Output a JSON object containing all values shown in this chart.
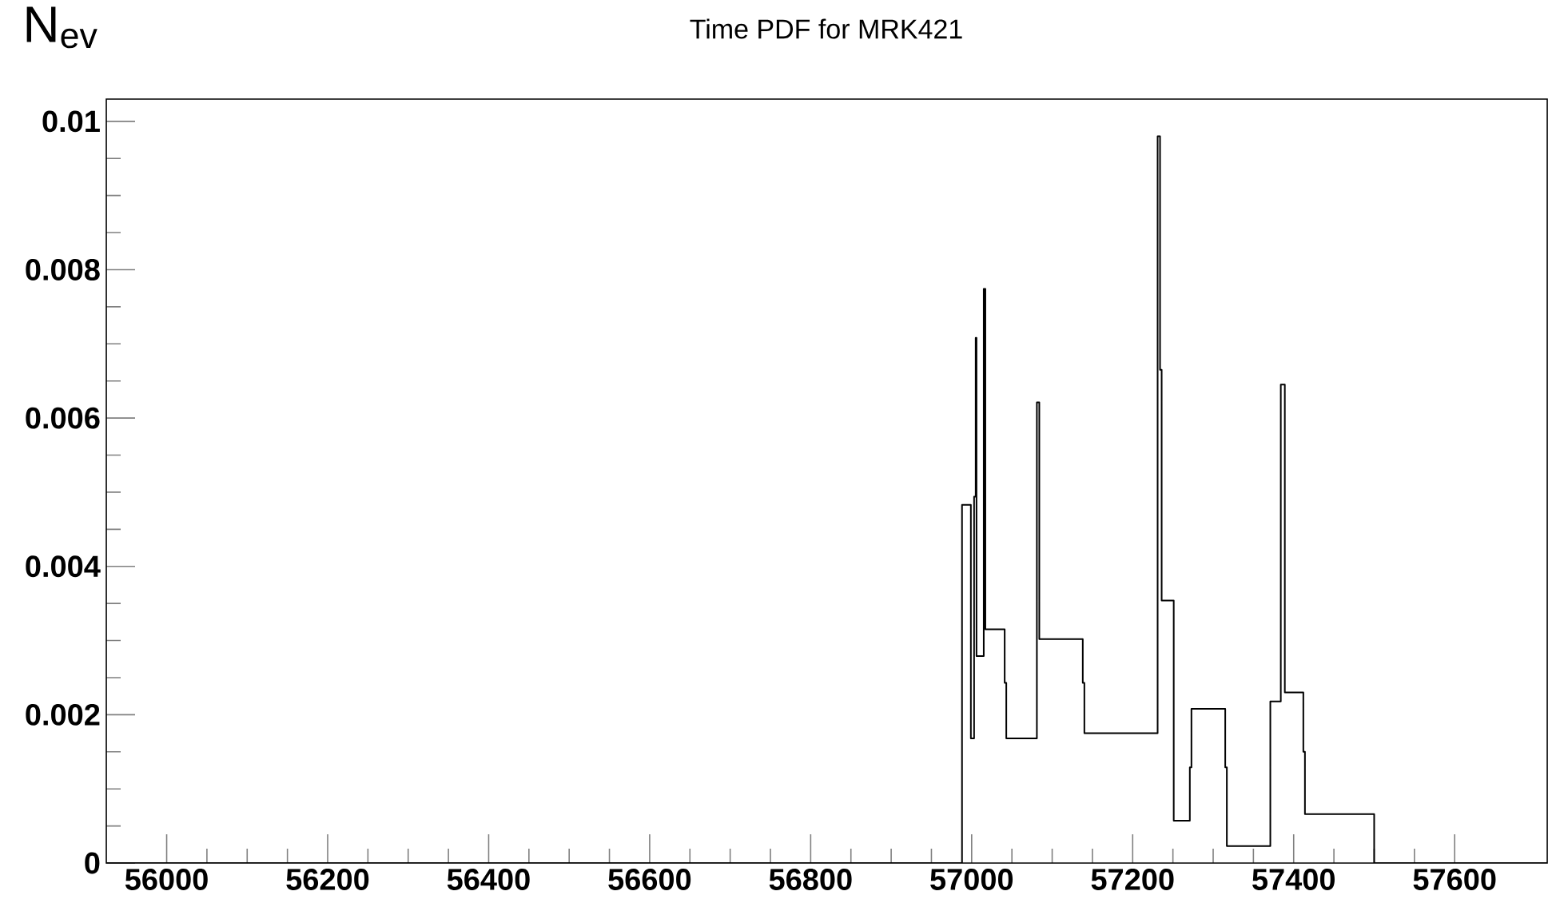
{
  "chart_data": {
    "type": "step",
    "title": "Time PDF for MRK421",
    "ylabel": "N$_{ev}$",
    "x": [
      55925,
      56988,
      56999,
      57003,
      57005,
      57006,
      57015,
      57017,
      57041,
      57043,
      57081,
      57084,
      57138,
      57140,
      57231,
      57234,
      57236,
      57251,
      57271,
      57273,
      57315,
      57317,
      57371,
      57384,
      57389,
      57412,
      57414,
      57500,
      57715
    ],
    "values": [
      0,
      0.00483,
      0.00168,
      0.00494,
      0.00708,
      0.00279,
      0.00774,
      0.00315,
      0.00243,
      0.00168,
      0.00621,
      0.00302,
      0.00243,
      0.00175,
      0.0098,
      0.00665,
      0.00354,
      0.00057,
      0.00129,
      0.00208,
      0.00129,
      0.00023,
      0.00218,
      0.00645,
      0.0023,
      0.0015,
      0.00066,
      0,
      0
    ],
    "color": "#000000",
    "xlim": [
      55925,
      57715
    ],
    "ylim": [
      0,
      0.0103
    ],
    "xticks": [
      56000,
      56200,
      56400,
      56600,
      56800,
      57000,
      57200,
      57400,
      57600
    ],
    "yticks": [
      0,
      0.002,
      0.004,
      0.006,
      0.008,
      0.01
    ],
    "grid": false
  }
}
